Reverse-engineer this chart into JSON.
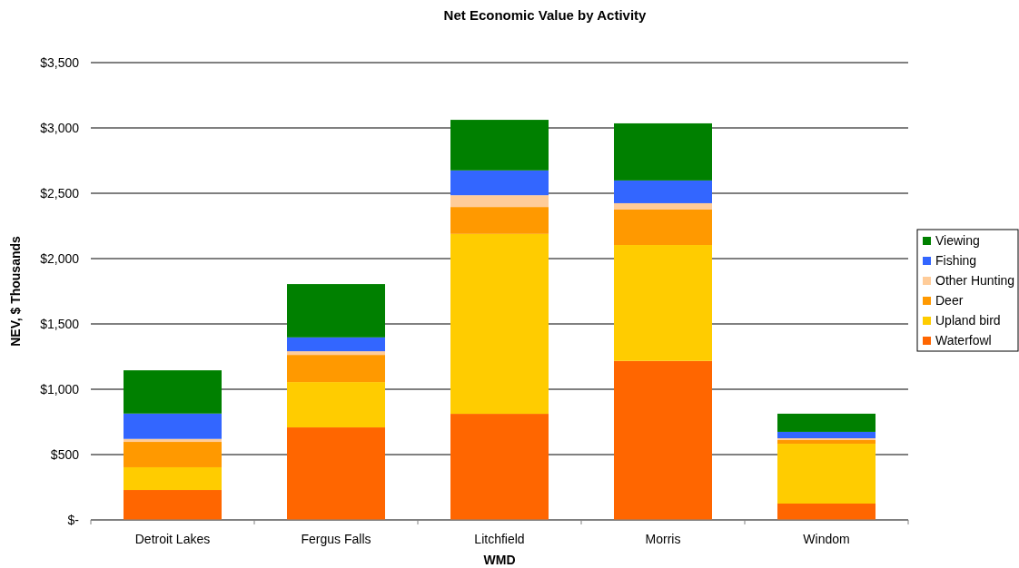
{
  "chart_data": {
    "type": "bar",
    "title": "Net Economic Value by Activity",
    "xlabel": "WMD",
    "ylabel": "NEV, $ Thousands",
    "categories": [
      "Detroit Lakes",
      "Fergus Falls",
      "Litchfield",
      "Morris",
      "Windom"
    ],
    "stacked": true,
    "series": [
      {
        "name": "Waterfowl",
        "color": "#ff6600",
        "values": [
          229,
          708,
          812,
          1217,
          125
        ]
      },
      {
        "name": "Upland bird",
        "color": "#ffcc00",
        "values": [
          174,
          347,
          1377,
          887,
          458
        ]
      },
      {
        "name": "Deer",
        "color": "#ff9900",
        "values": [
          194,
          208,
          206,
          271,
          28
        ]
      },
      {
        "name": "Other Hunting",
        "color": "#ffcc99",
        "values": [
          23,
          28,
          90,
          49,
          14
        ]
      },
      {
        "name": "Fishing",
        "color": "#3366ff",
        "values": [
          194,
          106,
          190,
          174,
          49
        ]
      },
      {
        "name": "Viewing",
        "color": "#008000",
        "values": [
          331,
          408,
          387,
          437,
          139
        ]
      }
    ],
    "ylim": [
      0,
      3500
    ],
    "yticks": [
      {
        "value": 0,
        "label": "$-"
      },
      {
        "value": 500,
        "label": "$500"
      },
      {
        "value": 1000,
        "label": "$1,000"
      },
      {
        "value": 1500,
        "label": "$1,500"
      },
      {
        "value": 2000,
        "label": "$2,000"
      },
      {
        "value": 2500,
        "label": "$2,500"
      },
      {
        "value": 3000,
        "label": "$3,000"
      },
      {
        "value": 3500,
        "label": "$3,500"
      }
    ],
    "grid": "y",
    "legend": "right"
  }
}
